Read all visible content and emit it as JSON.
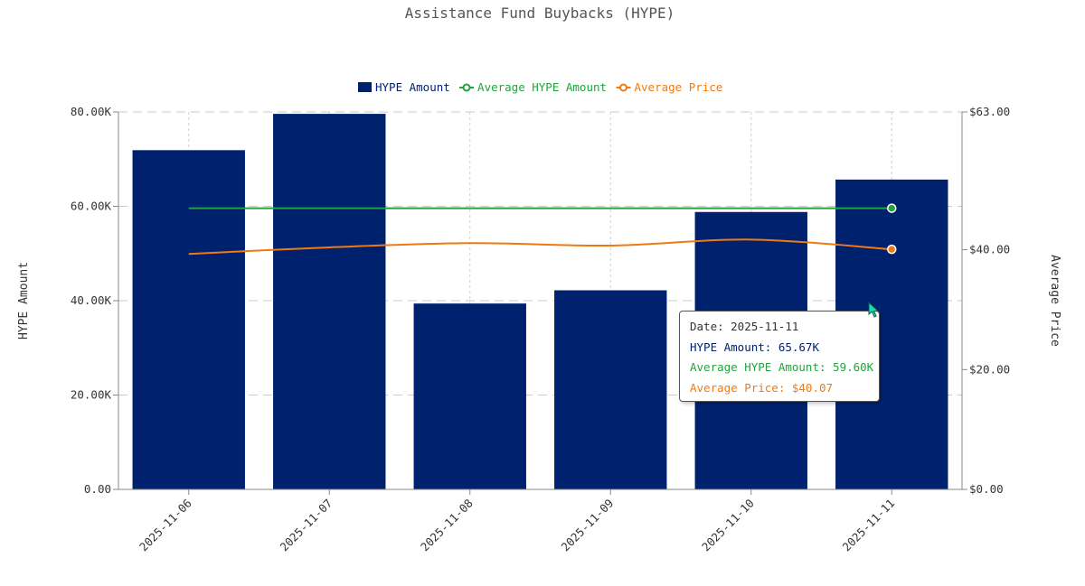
{
  "chart_data": {
    "type": "bar",
    "title": "Assistance Fund Buybacks (HYPE)",
    "categories": [
      "2025-11-06",
      "2025-11-07",
      "2025-11-08",
      "2025-11-09",
      "2025-11-10",
      "2025-11-11"
    ],
    "series": [
      {
        "name": "HYPE Amount",
        "kind": "bar",
        "axis": "left",
        "color": "#00226e",
        "values": [
          71900,
          79600,
          39400,
          42200,
          58800,
          65670
        ]
      },
      {
        "name": "Average HYPE Amount",
        "kind": "line",
        "axis": "left",
        "color": "#22a33c",
        "values": [
          59600,
          59600,
          59600,
          59600,
          59600,
          59600
        ]
      },
      {
        "name": "Average Price",
        "kind": "line",
        "axis": "right",
        "color": "#f07a12",
        "values": [
          39.3,
          40.4,
          41.1,
          40.7,
          41.7,
          40.07
        ]
      }
    ],
    "ylabel": "HYPE Amount",
    "ylabel_right": "Average Price",
    "xlabel": "",
    "ylim": [
      0,
      80000
    ],
    "ylim_right": [
      0,
      63
    ],
    "yticks": [
      0,
      20000,
      40000,
      60000,
      80000
    ],
    "ytick_labels": [
      "0.00",
      "20.00K",
      "40.00K",
      "60.00K",
      "80.00K"
    ],
    "yticks_right": [
      0,
      20,
      40,
      63
    ],
    "ytick_labels_right": [
      "$0.00",
      "$20.00",
      "$40.00",
      "$63.00"
    ],
    "grid": true,
    "legend_position": "top-center"
  },
  "tooltip": {
    "date": "Date: 2025-11-11",
    "hype_amount": "HYPE Amount: 65.67K",
    "avg_hype_amount": "Average HYPE Amount: 59.60K",
    "avg_price": "Average Price: $40.07"
  },
  "colors": {
    "bar": "#00226e",
    "avg_amount": "#22a33c",
    "avg_price": "#f07a12",
    "cursor": "#19e0b4"
  }
}
